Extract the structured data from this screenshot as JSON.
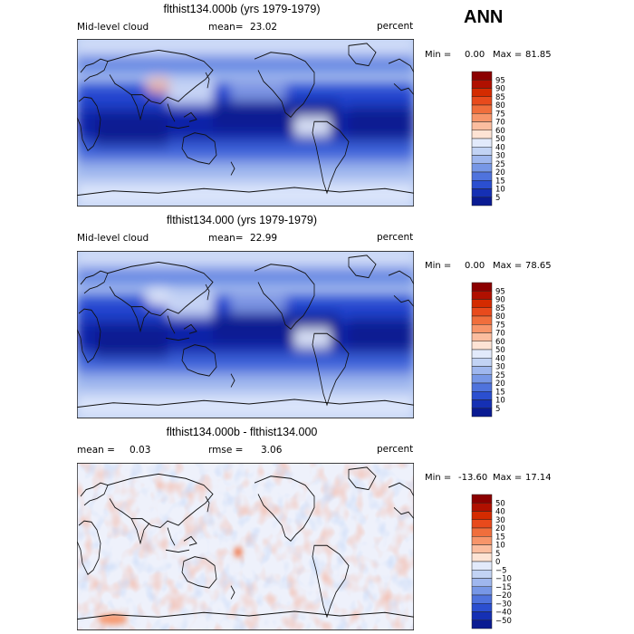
{
  "season": "ANN",
  "panels": [
    {
      "title": "flthist134.000b (yrs 1979-1979)",
      "left_label": "Mid-level cloud",
      "mean_label": "mean=",
      "mean_value": "23.02",
      "units": "percent",
      "min_label": "Min =",
      "min_value": "0.00",
      "max_label": "Max =",
      "max_value": "81.85",
      "levels": [
        "95",
        "90",
        "85",
        "80",
        "75",
        "70",
        "60",
        "50",
        "40",
        "30",
        "25",
        "20",
        "15",
        "10",
        "5"
      ],
      "colors": [
        "#8b0000",
        "#b01000",
        "#d42b00",
        "#e84a1c",
        "#f06e3c",
        "#f7956a",
        "#fbbd9f",
        "#fde3d4",
        "#e2eafb",
        "#c2d3f4",
        "#9fb7ee",
        "#7797e6",
        "#4f73dd",
        "#2b4fd0",
        "#1530b4",
        "#0a1b92"
      ]
    },
    {
      "title": "flthist134.000 (yrs 1979-1979)",
      "left_label": "Mid-level cloud",
      "mean_label": "mean=",
      "mean_value": "22.99",
      "units": "percent",
      "min_label": "Min =",
      "min_value": "0.00",
      "max_label": "Max =",
      "max_value": "78.65",
      "levels": [
        "95",
        "90",
        "85",
        "80",
        "75",
        "70",
        "60",
        "50",
        "40",
        "30",
        "25",
        "20",
        "15",
        "10",
        "5"
      ],
      "colors": [
        "#8b0000",
        "#b01000",
        "#d42b00",
        "#e84a1c",
        "#f06e3c",
        "#f7956a",
        "#fbbd9f",
        "#fde3d4",
        "#e2eafb",
        "#c2d3f4",
        "#9fb7ee",
        "#7797e6",
        "#4f73dd",
        "#2b4fd0",
        "#1530b4",
        "#0a1b92"
      ]
    },
    {
      "title": "flthist134.000b - flthist134.000",
      "left_label": "mean =",
      "left_value": "0.03",
      "rmse_label": "rmse =",
      "rmse_value": "3.06",
      "units": "percent",
      "min_label": "Min =",
      "min_value": "-13.60",
      "max_label": "Max =",
      "max_value": "17.14",
      "levels": [
        "50",
        "40",
        "30",
        "20",
        "15",
        "10",
        "5",
        "0",
        "−5",
        "−10",
        "−15",
        "−20",
        "−30",
        "−40",
        "−50"
      ],
      "colors": [
        "#8b0000",
        "#b01000",
        "#d42b00",
        "#e84a1c",
        "#f06e3c",
        "#f7956a",
        "#fbbd9f",
        "#fde3d4",
        "#e2eafb",
        "#c2d3f4",
        "#9fb7ee",
        "#7797e6",
        "#4f73dd",
        "#2b4fd0",
        "#1530b4",
        "#0a1b92"
      ]
    }
  ],
  "chart_data": [
    {
      "type": "heatmap",
      "title": "flthist134.000b (yrs 1979-1979)",
      "variable": "Mid-level cloud",
      "units": "percent",
      "mean": 23.02,
      "min": 0.0,
      "max": 81.85,
      "contour_levels": [
        5,
        10,
        15,
        20,
        25,
        30,
        40,
        50,
        60,
        70,
        75,
        80,
        85,
        90,
        95
      ]
    },
    {
      "type": "heatmap",
      "title": "flthist134.000 (yrs 1979-1979)",
      "variable": "Mid-level cloud",
      "units": "percent",
      "mean": 22.99,
      "min": 0.0,
      "max": 78.65,
      "contour_levels": [
        5,
        10,
        15,
        20,
        25,
        30,
        40,
        50,
        60,
        70,
        75,
        80,
        85,
        90,
        95
      ]
    },
    {
      "type": "heatmap",
      "title": "flthist134.000b - flthist134.000",
      "units": "percent",
      "mean": 0.03,
      "rmse": 3.06,
      "min": -13.6,
      "max": 17.14,
      "contour_levels": [
        -50,
        -40,
        -30,
        -20,
        -15,
        -10,
        -5,
        0,
        5,
        10,
        15,
        20,
        30,
        40,
        50
      ]
    }
  ]
}
